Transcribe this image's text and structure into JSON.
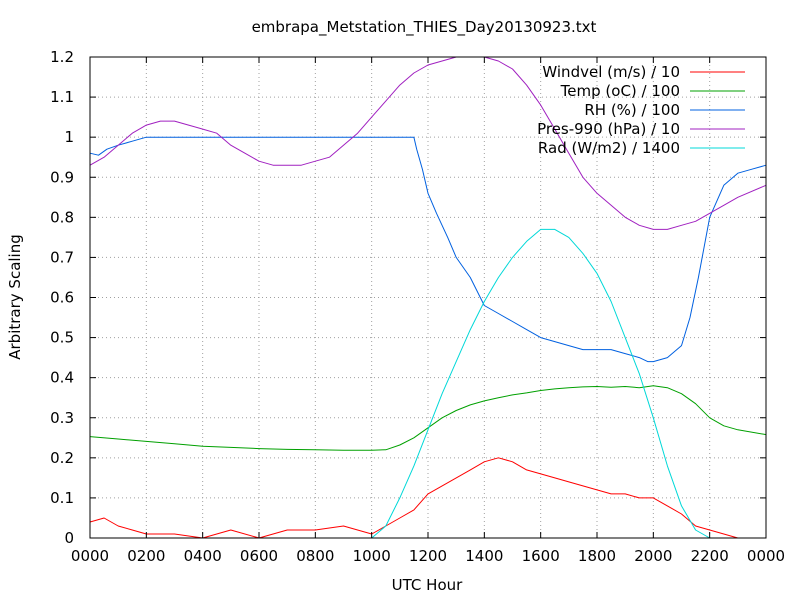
{
  "chart_data": {
    "type": "line",
    "title": "embrapa_Metstation_THIES_Day20130923.txt",
    "xlabel": "UTC Hour",
    "ylabel": "Arbitrary Scaling",
    "xlim": [
      0,
      24
    ],
    "ylim": [
      0,
      1.2
    ],
    "xticks": [
      0,
      2,
      4,
      6,
      8,
      10,
      12,
      14,
      16,
      18,
      20,
      22,
      24
    ],
    "xtick_labels": [
      "0000",
      "0200",
      "0400",
      "0600",
      "0800",
      "1000",
      "1200",
      "1400",
      "1600",
      "1800",
      "2000",
      "2200",
      "0000"
    ],
    "yticks": [
      0,
      0.1,
      0.2,
      0.3,
      0.4,
      0.5,
      0.6,
      0.7,
      0.8,
      0.9,
      1,
      1.1,
      1.2
    ],
    "ytick_labels": [
      "0",
      "0.1",
      "0.2",
      "0.3",
      "0.4",
      "0.5",
      "0.6",
      "0.7",
      "0.8",
      "0.9",
      "1",
      "1.1",
      "1.2"
    ],
    "grid": true,
    "legend_position": "top-right",
    "series": [
      {
        "name": "Windvel (m/s) / 10",
        "color": "#ff0000",
        "x": [
          0,
          0.5,
          1,
          1.5,
          2,
          3,
          4,
          5,
          6,
          7,
          8,
          9,
          10,
          10.5,
          11,
          11.5,
          12,
          12.5,
          13,
          13.5,
          14,
          14.5,
          15,
          15.5,
          16,
          16.5,
          17,
          17.5,
          18,
          18.5,
          19,
          19.5,
          20,
          20.5,
          21,
          21.5,
          22,
          22.5,
          23,
          24
        ],
        "y": [
          0.04,
          0.05,
          0.03,
          0.02,
          0.01,
          0.01,
          0.0,
          0.02,
          0.0,
          0.02,
          0.02,
          0.03,
          0.01,
          0.03,
          0.05,
          0.07,
          0.11,
          0.13,
          0.15,
          0.17,
          0.19,
          0.2,
          0.19,
          0.17,
          0.16,
          0.15,
          0.14,
          0.13,
          0.12,
          0.11,
          0.11,
          0.1,
          0.1,
          0.08,
          0.06,
          0.03,
          0.02,
          0.01,
          0.0,
          0.0
        ]
      },
      {
        "name": "Temp (oC) / 100",
        "color": "#00a000",
        "x": [
          0,
          1,
          2,
          3,
          4,
          5,
          6,
          7,
          8,
          9,
          10,
          10.5,
          11,
          11.5,
          12,
          12.5,
          13,
          13.5,
          14,
          14.5,
          15,
          15.5,
          16,
          16.5,
          17,
          17.5,
          18,
          18.5,
          19,
          19.5,
          20,
          20.5,
          21,
          21.5,
          22,
          22.5,
          23,
          24
        ],
        "y": [
          0.253,
          0.247,
          0.241,
          0.235,
          0.229,
          0.226,
          0.223,
          0.221,
          0.22,
          0.219,
          0.219,
          0.22,
          0.232,
          0.25,
          0.275,
          0.3,
          0.318,
          0.332,
          0.342,
          0.35,
          0.357,
          0.362,
          0.368,
          0.372,
          0.375,
          0.377,
          0.378,
          0.376,
          0.378,
          0.375,
          0.38,
          0.375,
          0.36,
          0.335,
          0.3,
          0.28,
          0.27,
          0.258
        ]
      },
      {
        "name": "RH (%) / 100",
        "color": "#0060e0",
        "x": [
          0,
          0.3,
          0.6,
          1,
          1.5,
          2,
          3,
          4,
          5,
          6,
          7,
          8,
          9,
          10,
          10.5,
          11,
          11.5,
          11.6,
          11.8,
          12,
          12.3,
          12.7,
          13,
          13.5,
          14,
          14.5,
          15,
          15.5,
          16,
          16.5,
          17,
          17.5,
          18,
          18.5,
          19,
          19.5,
          19.8,
          20,
          20.5,
          21,
          21.3,
          21.6,
          22,
          22.5,
          23,
          23.5,
          24
        ],
        "y": [
          0.96,
          0.955,
          0.97,
          0.98,
          0.99,
          1.0,
          1.0,
          1.0,
          1.0,
          1.0,
          1.0,
          1.0,
          1.0,
          1.0,
          1.0,
          1.0,
          1.0,
          0.97,
          0.92,
          0.86,
          0.81,
          0.75,
          0.7,
          0.65,
          0.58,
          0.56,
          0.54,
          0.52,
          0.5,
          0.49,
          0.48,
          0.47,
          0.47,
          0.47,
          0.46,
          0.45,
          0.44,
          0.44,
          0.45,
          0.48,
          0.55,
          0.65,
          0.8,
          0.88,
          0.91,
          0.92,
          0.93
        ]
      },
      {
        "name": "Pres-990 (hPa) / 10",
        "color": "#a020c0",
        "x": [
          0,
          0.5,
          1,
          1.5,
          2,
          2.5,
          3,
          3.5,
          4,
          4.5,
          5,
          5.5,
          6,
          6.5,
          7,
          7.5,
          8,
          8.5,
          9,
          9.5,
          10,
          10.5,
          11,
          11.5,
          12,
          12.5,
          13,
          13.5,
          14,
          14.5,
          15,
          15.5,
          16,
          16.5,
          17,
          17.5,
          18,
          18.5,
          19,
          19.5,
          20,
          20.5,
          21,
          21.5,
          22,
          22.5,
          23,
          24
        ],
        "y": [
          0.93,
          0.95,
          0.98,
          1.01,
          1.03,
          1.04,
          1.04,
          1.03,
          1.02,
          1.01,
          0.98,
          0.96,
          0.94,
          0.93,
          0.93,
          0.93,
          0.94,
          0.95,
          0.98,
          1.01,
          1.05,
          1.09,
          1.13,
          1.16,
          1.18,
          1.19,
          1.2,
          1.2,
          1.2,
          1.19,
          1.17,
          1.13,
          1.08,
          1.02,
          0.96,
          0.9,
          0.86,
          0.83,
          0.8,
          0.78,
          0.77,
          0.77,
          0.78,
          0.79,
          0.81,
          0.83,
          0.85,
          0.88
        ]
      },
      {
        "name": "Rad (W/m2) / 1400",
        "color": "#00d8d8",
        "x": [
          0,
          10,
          10.5,
          11,
          11.5,
          12,
          12.5,
          13,
          13.5,
          14,
          14.5,
          15,
          15.5,
          16,
          16.5,
          17,
          17.5,
          18,
          18.5,
          19,
          19.5,
          20,
          20.5,
          21,
          21.5,
          22,
          22.5,
          23,
          24
        ],
        "y": [
          0.0,
          0.0,
          0.03,
          0.1,
          0.18,
          0.27,
          0.36,
          0.44,
          0.52,
          0.59,
          0.65,
          0.7,
          0.74,
          0.77,
          0.77,
          0.75,
          0.71,
          0.66,
          0.59,
          0.5,
          0.41,
          0.3,
          0.18,
          0.08,
          0.02,
          0.0,
          0.0,
          0.0,
          0.0
        ]
      }
    ]
  }
}
